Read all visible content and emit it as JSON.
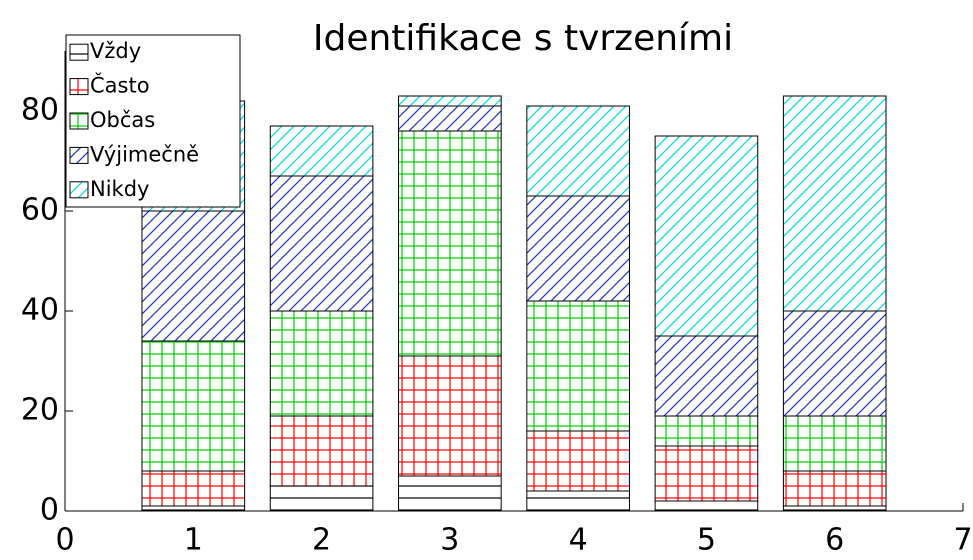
{
  "chart_data": {
    "type": "stacked_bar",
    "title": "Identifikace s tvrzeními",
    "x": [
      1,
      2,
      3,
      4,
      5,
      6
    ],
    "series": [
      {
        "name": "Vždy",
        "color": "#000000",
        "hatch": "horizontal",
        "values": [
          1,
          5,
          7,
          4,
          2,
          1
        ]
      },
      {
        "name": "Často",
        "color": "#ff0000",
        "hatch": "grid",
        "values": [
          7,
          14,
          24,
          12,
          11,
          7
        ]
      },
      {
        "name": "Občas",
        "color": "#00cc00",
        "hatch": "grid",
        "values": [
          26,
          21,
          45,
          26,
          6,
          11
        ]
      },
      {
        "name": "Výjimečně",
        "color": "#2233cc",
        "hatch": "diagonal",
        "values": [
          26,
          27,
          5,
          21,
          16,
          21
        ]
      },
      {
        "name": "Nikdy",
        "color": "#00dddd",
        "hatch": "diagonal",
        "values": [
          22,
          10,
          2,
          18,
          40,
          43
        ]
      }
    ],
    "xlim": [
      0,
      7
    ],
    "xticks": [
      0,
      1,
      2,
      3,
      4,
      5,
      6,
      7
    ],
    "ylim": [
      0,
      92
    ],
    "yticks": [
      0,
      20,
      40,
      60,
      80
    ],
    "legend": "upper left"
  }
}
